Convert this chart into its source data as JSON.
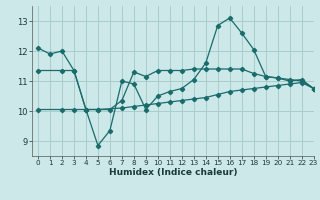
{
  "xlabel": "Humidex (Indice chaleur)",
  "bg_color": "#cce8e8",
  "grid_color": "#aacccc",
  "line_color": "#1a6b6b",
  "xlim": [
    -0.5,
    23
  ],
  "ylim": [
    8.5,
    13.5
  ],
  "yticks": [
    9,
    10,
    11,
    12,
    13
  ],
  "ytick_labels": [
    "9",
    "10",
    "11",
    "12",
    "13"
  ],
  "xticks": [
    0,
    1,
    2,
    3,
    4,
    5,
    6,
    7,
    8,
    9,
    10,
    11,
    12,
    13,
    14,
    15,
    16,
    17,
    18,
    19,
    20,
    21,
    22,
    23
  ],
  "line1_x": [
    0,
    1,
    2,
    3,
    4,
    5,
    6,
    7,
    8,
    9,
    10,
    11,
    12,
    13,
    14,
    15,
    16,
    17,
    18,
    19,
    20,
    21,
    22,
    23
  ],
  "line1_y": [
    12.1,
    11.9,
    12.0,
    11.35,
    10.05,
    8.85,
    9.35,
    11.0,
    10.9,
    10.05,
    10.5,
    10.65,
    10.75,
    11.05,
    11.6,
    12.85,
    13.1,
    12.6,
    12.05,
    11.15,
    11.1,
    11.0,
    11.05,
    10.75
  ],
  "line2_x": [
    0,
    2,
    3,
    4,
    5,
    6,
    7,
    8,
    9,
    10,
    11,
    12,
    13,
    14,
    15,
    16,
    17,
    18,
    19,
    20,
    21,
    22,
    23
  ],
  "line2_y": [
    11.35,
    11.35,
    11.35,
    10.05,
    10.05,
    10.05,
    10.35,
    11.3,
    11.15,
    11.35,
    11.35,
    11.35,
    11.4,
    11.4,
    11.4,
    11.4,
    11.4,
    11.25,
    11.15,
    11.1,
    11.05,
    11.0,
    10.75
  ],
  "line3_x": [
    0,
    2,
    3,
    4,
    5,
    7,
    8,
    9,
    10,
    11,
    12,
    13,
    14,
    15,
    16,
    17,
    18,
    19,
    20,
    21,
    22,
    23
  ],
  "line3_y": [
    10.05,
    10.05,
    10.05,
    10.05,
    10.05,
    10.1,
    10.15,
    10.2,
    10.25,
    10.3,
    10.35,
    10.4,
    10.45,
    10.55,
    10.65,
    10.7,
    10.75,
    10.8,
    10.85,
    10.9,
    10.95,
    10.75
  ]
}
